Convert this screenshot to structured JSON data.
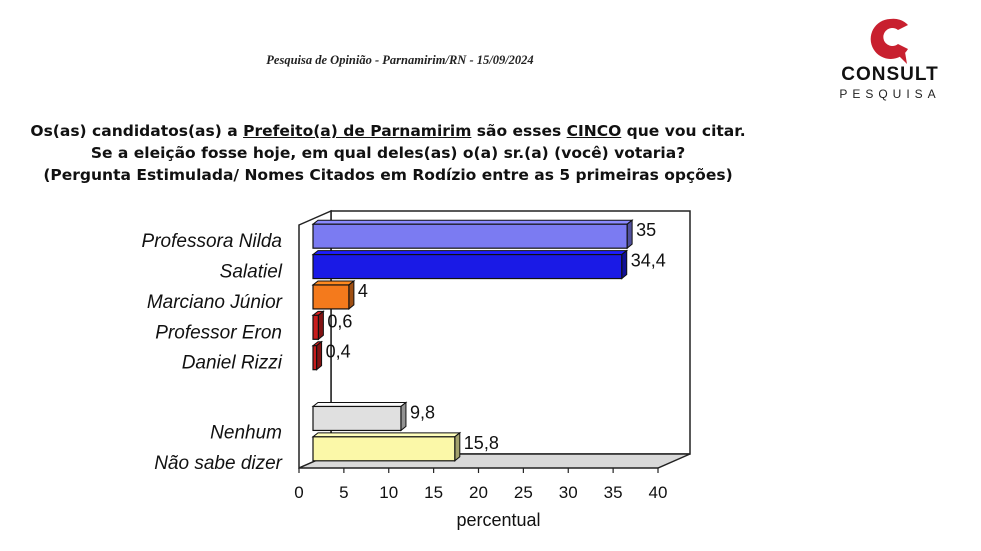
{
  "header": {
    "subtitle": "Pesquisa de Opinião  -  Parnamirim/RN  -  15/09/2024"
  },
  "logo": {
    "name": "CONSULT",
    "tagline": "PESQUISA",
    "color": "#c8202f"
  },
  "question": {
    "line1_a": "Os(as) candidatos(as) a ",
    "line1_b": "Prefeito(a) de Parnamirim",
    "line1_c": " são esses ",
    "line1_d": "CINCO",
    "line1_e": " que vou citar.",
    "line2": "Se a eleição fosse hoje, em qual deles(as) o(a) sr.(a) (você) votaria?",
    "line3": "(Pergunta Estimulada/ Nomes Citados em Rodízio entre as 5 primeiras opções)"
  },
  "chart_data": {
    "type": "bar",
    "orientation": "horizontal",
    "style": "3d",
    "categories": [
      "Professora Nilda",
      "Salatiel",
      "Marciano Júnior",
      "Professor Eron",
      "Daniel Rizzi",
      "",
      "Nenhum",
      "Não sabe dizer"
    ],
    "values": [
      35,
      34.4,
      4,
      0.6,
      0.4,
      null,
      9.8,
      15.8
    ],
    "value_labels": [
      "35",
      "34,4",
      "4",
      "0,6",
      "0,4",
      "",
      "9,8",
      "15,8"
    ],
    "bar_colors": [
      "#7b7bf2",
      "#1a1ae6",
      "#f47a1c",
      "#c81d1d",
      "#c81d1d",
      "",
      "#e0e0e0",
      "#fbf8a8"
    ],
    "xlabel": "percentual",
    "xlim": [
      0,
      40
    ],
    "xticks": [
      "0",
      "5",
      "10",
      "15",
      "20",
      "25",
      "30",
      "35",
      "40"
    ],
    "grid": false,
    "legend": "none"
  }
}
